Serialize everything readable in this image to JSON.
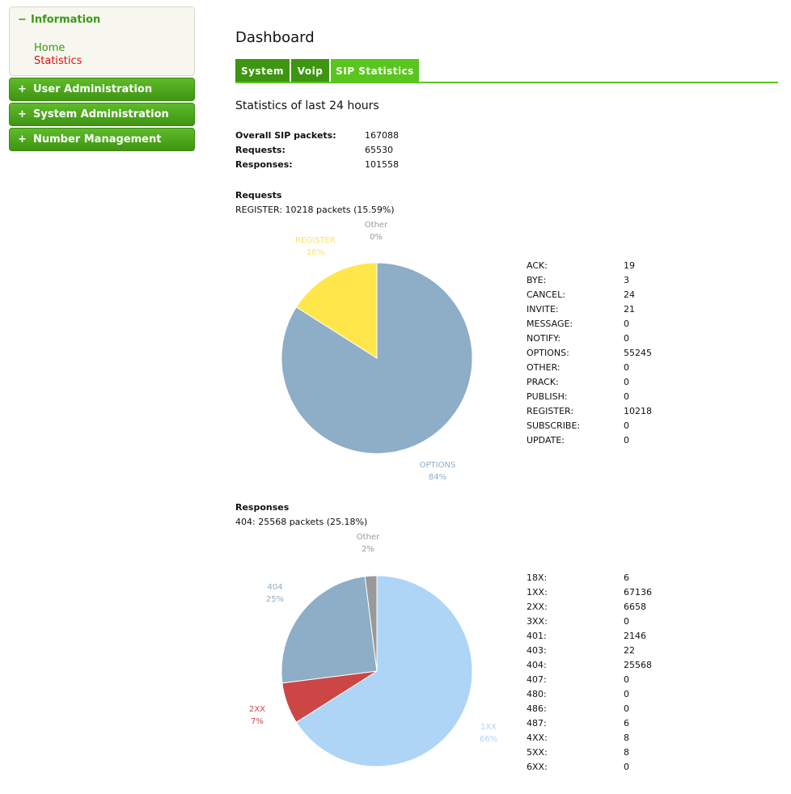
{
  "sidebar": {
    "information": {
      "sign": "−",
      "label": "Information"
    },
    "links": {
      "home": "Home",
      "statistics": "Statistics"
    },
    "menus": [
      {
        "sign": "+",
        "label": "User Administration"
      },
      {
        "sign": "+",
        "label": "System Administration"
      },
      {
        "sign": "+",
        "label": "Number Management"
      }
    ]
  },
  "page": {
    "title": "Dashboard"
  },
  "tabs": [
    {
      "label": "System",
      "active": false
    },
    {
      "label": "Voip",
      "active": false
    },
    {
      "label": "SIP Statistics",
      "active": true
    }
  ],
  "stats": {
    "subtitle": "Statistics of last 24 hours",
    "summary": [
      {
        "label": "Overall SIP packets:",
        "value": "167088"
      },
      {
        "label": "Requests:",
        "value": "65530"
      },
      {
        "label": "Responses:",
        "value": "101558"
      }
    ]
  },
  "requests": {
    "title": "Requests",
    "note": "REGISTER: 10218 packets (15.59%)",
    "table": [
      {
        "label": "ACK:",
        "value": "19"
      },
      {
        "label": "BYE:",
        "value": "3"
      },
      {
        "label": "CANCEL:",
        "value": "24"
      },
      {
        "label": "INVITE:",
        "value": "21"
      },
      {
        "label": "MESSAGE:",
        "value": "0"
      },
      {
        "label": "NOTIFY:",
        "value": "0"
      },
      {
        "label": "OPTIONS:",
        "value": "55245"
      },
      {
        "label": "OTHER:",
        "value": "0"
      },
      {
        "label": "PRACK:",
        "value": "0"
      },
      {
        "label": "PUBLISH:",
        "value": "0"
      },
      {
        "label": "REGISTER:",
        "value": "10218"
      },
      {
        "label": "SUBSCRIBE:",
        "value": "0"
      },
      {
        "label": "UPDATE:",
        "value": "0"
      }
    ]
  },
  "responses": {
    "title": "Responses",
    "note": "404: 25568 packets (25.18%)",
    "table": [
      {
        "label": "18X:",
        "value": "6"
      },
      {
        "label": "1XX:",
        "value": "67136"
      },
      {
        "label": "2XX:",
        "value": "6658"
      },
      {
        "label": "3XX:",
        "value": "0"
      },
      {
        "label": "401:",
        "value": "2146"
      },
      {
        "label": "403:",
        "value": "22"
      },
      {
        "label": "404:",
        "value": "25568"
      },
      {
        "label": "407:",
        "value": "0"
      },
      {
        "label": "480:",
        "value": "0"
      },
      {
        "label": "486:",
        "value": "0"
      },
      {
        "label": "487:",
        "value": "6"
      },
      {
        "label": "4XX:",
        "value": "8"
      },
      {
        "label": "5XX:",
        "value": "8"
      },
      {
        "label": "6XX:",
        "value": "0"
      }
    ]
  },
  "chart_data": [
    {
      "type": "pie",
      "slices": [
        {
          "name": "OPTIONS",
          "value": 84,
          "label": "84%",
          "color": "#8eadc6"
        },
        {
          "name": "REGISTER",
          "value": 16,
          "label": "16%",
          "color": "#ffe64a"
        },
        {
          "name": "Other",
          "value": 0,
          "label": "0%",
          "color": "#999999"
        }
      ]
    },
    {
      "type": "pie",
      "slices": [
        {
          "name": "1XX",
          "value": 66,
          "label": "66%",
          "color": "#aed5f6"
        },
        {
          "name": "2XX",
          "value": 7,
          "label": "7%",
          "color": "#cc4646"
        },
        {
          "name": "404",
          "value": 25,
          "label": "25%",
          "color": "#8eadc6"
        },
        {
          "name": "Other",
          "value": 2,
          "label": "2%",
          "color": "#999999"
        }
      ]
    }
  ]
}
